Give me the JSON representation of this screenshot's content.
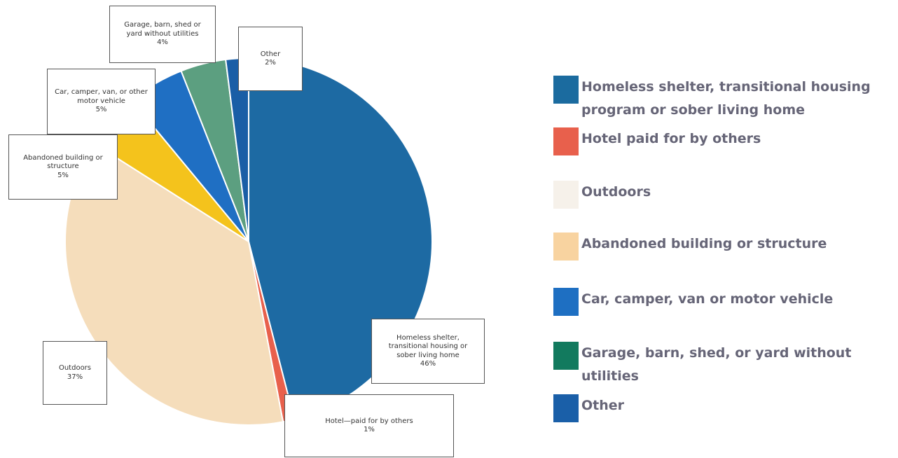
{
  "chart_data": {
    "type": "pie",
    "categories": [
      "Homeless shelter, transitional housing program or sober living home",
      "Hotel paid for by others",
      "Outdoors",
      "Abandoned building or structure",
      "Car, camper, van or motor vehicle",
      "Garage, barn, shed, or yard without utilities",
      "Other"
    ],
    "slice_labels": [
      "Homeless shelter, transitional housing or sober living home",
      "Hotel—paid for by others",
      "Outdoors",
      "Abandoned building or structure",
      "Car, camper, van, or other motor vehicle",
      "Garage, barn, shed or yard without utilities",
      "Other"
    ],
    "values": [
      46,
      1,
      37,
      5,
      5,
      4,
      2
    ],
    "value_labels": [
      "46%",
      "1%",
      "37%",
      "5%",
      "5%",
      "4%",
      "2%"
    ],
    "colors": [
      "#1d6aa3",
      "#e8604c",
      "#f5ddbb",
      "#f4c31c",
      "#1f6fc3",
      "#5c9f80",
      "#1a5ea6"
    ],
    "legend_colors": [
      "#1b6b9f",
      "#e8604c",
      "#f6f1ea",
      "#f8d3a0",
      "#1e6fc2",
      "#127a5e",
      "#1a5fa8"
    ]
  }
}
